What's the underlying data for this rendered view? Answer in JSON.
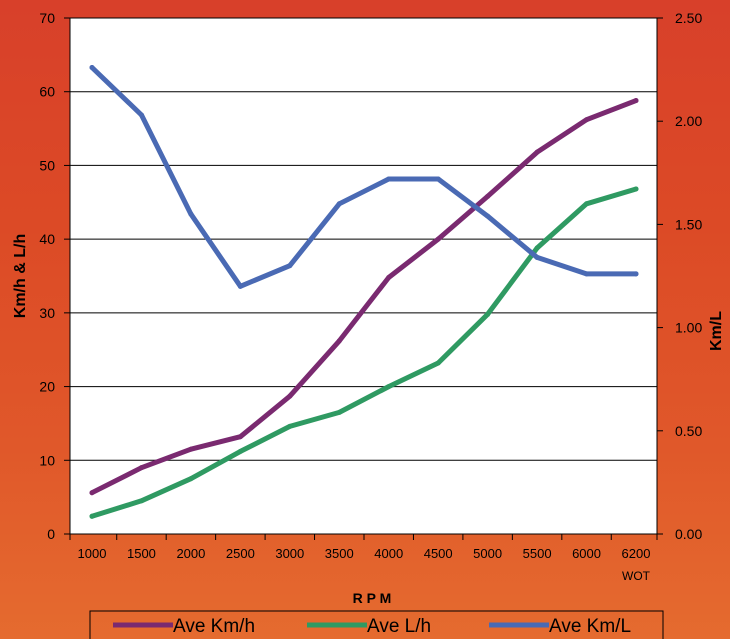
{
  "chart_data": {
    "type": "line",
    "xlabel": "R P M",
    "ylabel_left": "Km/h & L/h",
    "ylabel_right": "Km/L",
    "categories": [
      "1000",
      "1500",
      "2000",
      "2500",
      "3000",
      "3500",
      "4000",
      "4500",
      "5000",
      "5500",
      "6000",
      "6200"
    ],
    "category_sublabels": {
      "6200": "WOT"
    },
    "ylim_left": [
      0,
      70
    ],
    "yticks_left": [
      "0",
      "10",
      "20",
      "30",
      "40",
      "50",
      "60",
      "70"
    ],
    "ylim_right": [
      0,
      2.5
    ],
    "yticks_right": [
      "0.00",
      "0.50",
      "1.00",
      "1.50",
      "2.00",
      "2.50"
    ],
    "grid": "horizontal",
    "legend_position": "bottom",
    "series": [
      {
        "name": "Ave Km/h",
        "axis": "left",
        "color": "#7a2a70",
        "values": [
          5.6,
          9.0,
          11.5,
          13.2,
          18.7,
          26.2,
          34.8,
          40.0,
          45.8,
          51.8,
          56.2,
          58.8
        ]
      },
      {
        "name": "Ave L/h",
        "axis": "left",
        "color": "#2f9a62",
        "values": [
          2.4,
          4.5,
          7.5,
          11.2,
          14.6,
          16.5,
          20.0,
          23.2,
          29.8,
          38.8,
          44.8,
          46.8
        ]
      },
      {
        "name": "Ave Km/L",
        "axis": "right",
        "color": "#4a6ab4",
        "values": [
          2.26,
          2.03,
          1.55,
          1.2,
          1.3,
          1.6,
          1.72,
          1.72,
          1.54,
          1.34,
          1.26,
          1.26
        ]
      }
    ]
  }
}
